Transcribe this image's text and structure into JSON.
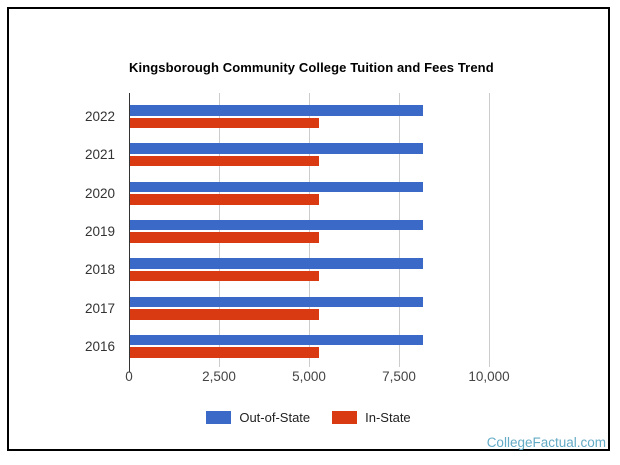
{
  "watermark": {
    "text": "CollegeFactual.com",
    "color": "#64abc6"
  },
  "chart_data": {
    "type": "bar",
    "orientation": "horizontal",
    "title": "Kingsborough Community College Tuition and Fees Trend",
    "categories": [
      "2022",
      "2021",
      "2020",
      "2019",
      "2018",
      "2017",
      "2016"
    ],
    "series": [
      {
        "name": "Out-of-State",
        "color": "#3b69c8",
        "values": [
          8150,
          8150,
          8150,
          8150,
          8150,
          8150,
          8150
        ]
      },
      {
        "name": "In-State",
        "color": "#d93a12",
        "values": [
          5250,
          5250,
          5250,
          5250,
          5250,
          5250,
          5250
        ]
      }
    ],
    "xlabel": "",
    "ylabel": "",
    "xlim": [
      0,
      10000
    ],
    "x_ticks": [
      {
        "value": 0,
        "label": "0"
      },
      {
        "value": 2500,
        "label": "2,500"
      },
      {
        "value": 5000,
        "label": "5,000"
      },
      {
        "value": 7500,
        "label": "7,500"
      },
      {
        "value": 10000,
        "label": "10,000"
      }
    ],
    "grid": true,
    "legend_position": "bottom",
    "grid_color": "#cccccc",
    "axis_color": "#333333"
  }
}
